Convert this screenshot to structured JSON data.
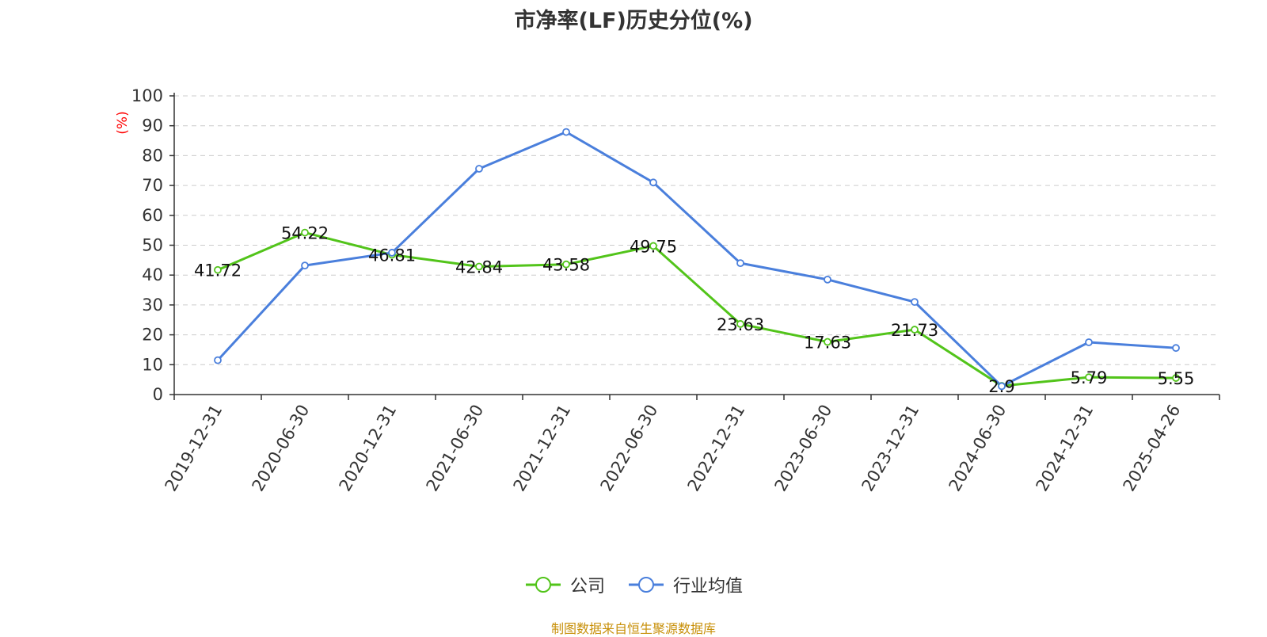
{
  "title": "市净率(LF)历史分位(%)",
  "source_note": "制图数据来自恒生聚源数据库",
  "chart_data": {
    "type": "line",
    "title": "市净率(LF)历史分位(%)",
    "ylabel": "(%)",
    "xlabel": "",
    "ylim": [
      0,
      100
    ],
    "yticks": [
      0,
      10,
      20,
      30,
      40,
      50,
      60,
      70,
      80,
      90,
      100
    ],
    "grid": true,
    "legend_position": "bottom-center",
    "categories": [
      "2019-12-31",
      "2020-06-30",
      "2020-12-31",
      "2021-06-30",
      "2021-12-31",
      "2022-06-30",
      "2022-12-31",
      "2023-06-30",
      "2023-12-31",
      "2024-06-30",
      "2024-12-31",
      "2025-04-26"
    ],
    "series": [
      {
        "name": "公司",
        "color": "#52c41a",
        "show_labels": true,
        "values": [
          41.72,
          54.22,
          46.81,
          42.84,
          43.58,
          49.75,
          23.63,
          17.63,
          21.73,
          2.9,
          5.79,
          5.55
        ]
      },
      {
        "name": "行业均值",
        "color": "#4a7fdc",
        "show_labels": false,
        "values": [
          11.5,
          43.2,
          47.5,
          75.6,
          87.9,
          71.0,
          44.0,
          38.5,
          31.0,
          2.8,
          17.5,
          15.6
        ]
      }
    ],
    "ylabel_color": "#ff0000"
  }
}
